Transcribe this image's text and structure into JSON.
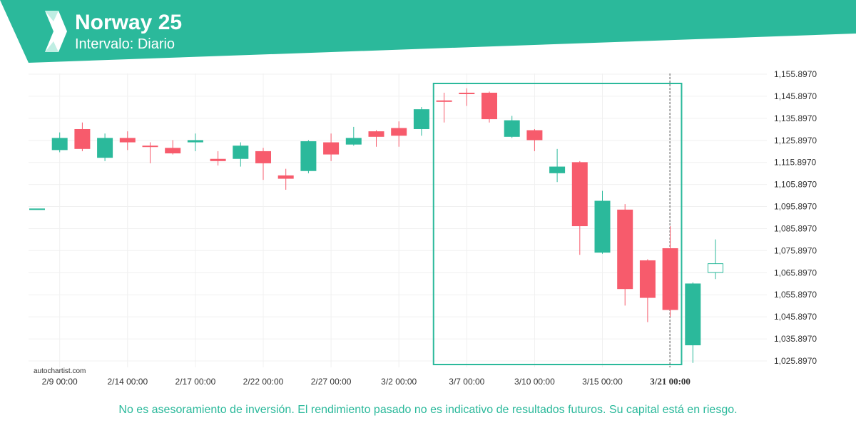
{
  "header": {
    "title": "Norway 25",
    "subtitle": "Intervalo: Diario"
  },
  "watermark": "autochartist.com",
  "disclaimer": "No es asesoramiento de inversión. El rendimiento pasado no es indicativo de resultados futuros. Su capital está en riesgo.",
  "colors": {
    "brand": "#2bb99b",
    "up": "#2bb99b",
    "down": "#f75b6c",
    "grid": "#f0f0f0"
  },
  "chart_data": {
    "type": "candlestick",
    "title": "Norway 25",
    "subtitle": "Intervalo: Diario",
    "xlabel": "",
    "ylabel": "",
    "ylim": [
      1022.897,
      1159.897
    ],
    "y_ticks": [
      "1,155.8970",
      "1,145.8970",
      "1,135.8970",
      "1,125.8970",
      "1,115.8970",
      "1,105.8970",
      "1,095.8970",
      "1,085.8970",
      "1,075.8970",
      "1,065.8970",
      "1,055.8970",
      "1,045.8970",
      "1,035.8970",
      "1,025.8970"
    ],
    "x_ticks": [
      {
        "label": "2/9 00:00",
        "index": 1
      },
      {
        "label": "2/14 00:00",
        "index": 4
      },
      {
        "label": "2/17 00:00",
        "index": 7
      },
      {
        "label": "2/22 00:00",
        "index": 10
      },
      {
        "label": "2/27 00:00",
        "index": 13
      },
      {
        "label": "3/2 00:00",
        "index": 16
      },
      {
        "label": "3/7 00:00",
        "index": 19
      },
      {
        "label": "3/10 00:00",
        "index": 22
      },
      {
        "label": "3/15 00:00",
        "index": 25
      },
      {
        "label": "3/21 00:00",
        "index": 28,
        "bold": true
      }
    ],
    "grid": true,
    "highlight_range": {
      "start_index": 17.5,
      "end_index": 28.5
    },
    "candles": [
      {
        "o": 1095.0,
        "h": 1095.0,
        "l": 1095.0,
        "c": 1095.0
      },
      {
        "o": 1121.5,
        "h": 1129.5,
        "l": 1120.5,
        "c": 1127.0
      },
      {
        "o": 1131.0,
        "h": 1134.0,
        "l": 1121.0,
        "c": 1122.0
      },
      {
        "o": 1118.0,
        "h": 1129.0,
        "l": 1116.5,
        "c": 1127.0
      },
      {
        "o": 1127.0,
        "h": 1130.0,
        "l": 1121.5,
        "c": 1125.0
      },
      {
        "o": 1123.5,
        "h": 1125.0,
        "l": 1115.5,
        "c": 1123.0
      },
      {
        "o": 1122.5,
        "h": 1126.0,
        "l": 1119.5,
        "c": 1120.0
      },
      {
        "o": 1125.0,
        "h": 1129.0,
        "l": 1121.0,
        "c": 1126.0
      },
      {
        "o": 1117.5,
        "h": 1121.0,
        "l": 1114.5,
        "c": 1116.5
      },
      {
        "o": 1117.5,
        "h": 1125.0,
        "l": 1114.0,
        "c": 1123.5
      },
      {
        "o": 1121.0,
        "h": 1122.5,
        "l": 1108.0,
        "c": 1115.5
      },
      {
        "o": 1110.0,
        "h": 1113.0,
        "l": 1103.5,
        "c": 1108.5
      },
      {
        "o": 1112.0,
        "h": 1126.0,
        "l": 1111.0,
        "c": 1125.5
      },
      {
        "o": 1125.0,
        "h": 1129.0,
        "l": 1116.5,
        "c": 1119.5
      },
      {
        "o": 1124.0,
        "h": 1132.0,
        "l": 1123.5,
        "c": 1127.0
      },
      {
        "o": 1130.0,
        "h": 1130.5,
        "l": 1123.0,
        "c": 1127.5
      },
      {
        "o": 1131.5,
        "h": 1134.5,
        "l": 1123.0,
        "c": 1128.0
      },
      {
        "o": 1131.0,
        "h": 1141.0,
        "l": 1128.0,
        "c": 1140.0
      },
      {
        "o": 1144.0,
        "h": 1147.5,
        "l": 1134.0,
        "c": 1143.5
      },
      {
        "o": 1147.5,
        "h": 1149.5,
        "l": 1141.5,
        "c": 1147.0
      },
      {
        "o": 1147.5,
        "h": 1148.0,
        "l": 1134.0,
        "c": 1135.5
      },
      {
        "o": 1127.5,
        "h": 1137.0,
        "l": 1127.0,
        "c": 1135.0
      },
      {
        "o": 1130.5,
        "h": 1131.0,
        "l": 1121.0,
        "c": 1126.0
      },
      {
        "o": 1111.0,
        "h": 1122.0,
        "l": 1107.0,
        "c": 1114.0
      },
      {
        "o": 1116.0,
        "h": 1116.5,
        "l": 1074.0,
        "c": 1087.0
      },
      {
        "o": 1075.0,
        "h": 1103.0,
        "l": 1074.5,
        "c": 1098.5
      },
      {
        "o": 1094.5,
        "h": 1097.0,
        "l": 1051.0,
        "c": 1058.5
      },
      {
        "o": 1071.5,
        "h": 1072.0,
        "l": 1043.5,
        "c": 1054.5
      },
      {
        "o": 1077.0,
        "h": 1087.0,
        "l": 1046.0,
        "c": 1049.0
      },
      {
        "o": 1033.0,
        "h": 1061.5,
        "l": 1025.0,
        "c": 1061.0
      },
      {
        "o": 1066.0,
        "h": 1081.0,
        "l": 1063.0,
        "c": 1070.0
      }
    ]
  }
}
